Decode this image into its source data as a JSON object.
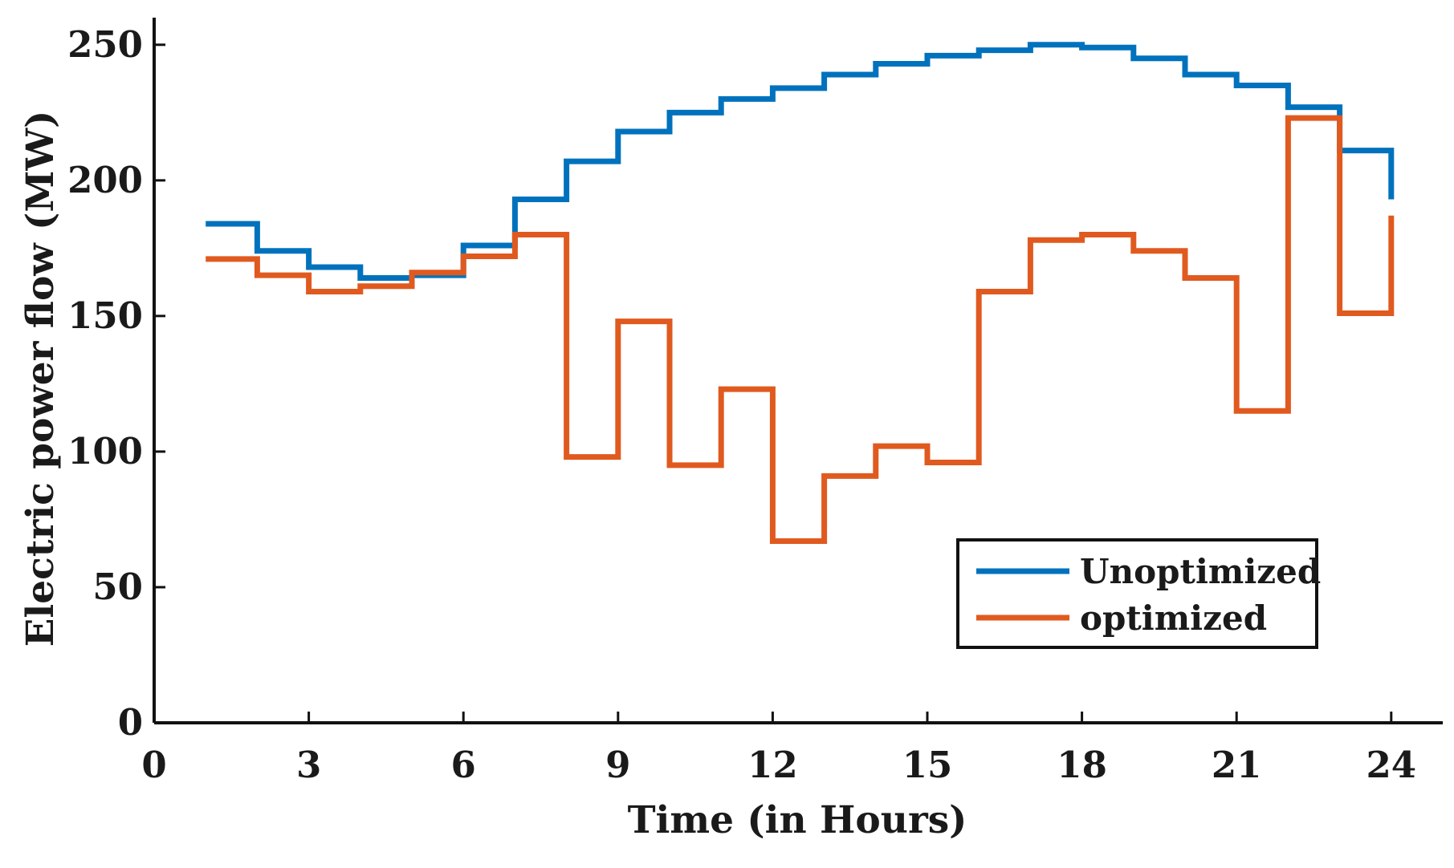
{
  "chart_data": {
    "type": "line",
    "step": true,
    "title": "",
    "xlabel": "Time (in Hours)",
    "ylabel": "Electric power flow (MW)",
    "xlim": [
      0,
      25
    ],
    "ylim": [
      0,
      260
    ],
    "xticks": [
      0,
      3,
      6,
      9,
      12,
      15,
      18,
      21,
      24
    ],
    "yticks": [
      0,
      50,
      100,
      150,
      200,
      250
    ],
    "grid": false,
    "legend_position": "bottom-right",
    "x": [
      1,
      2,
      3,
      4,
      5,
      6,
      7,
      8,
      9,
      10,
      11,
      12,
      13,
      14,
      15,
      16,
      17,
      18,
      19,
      20,
      21,
      22,
      23,
      24
    ],
    "series": [
      {
        "name": "Unoptimized",
        "color": "#0072BD",
        "values": [
          184,
          174,
          168,
          164,
          165,
          176,
          193,
          207,
          218,
          225,
          230,
          234,
          239,
          243,
          246,
          248,
          250,
          249,
          245,
          239,
          235,
          227,
          211,
          193
        ]
      },
      {
        "name": "optimized",
        "color": "#E05A1F",
        "values": [
          171,
          165,
          159,
          161,
          166,
          172,
          180,
          98,
          148,
          95,
          123,
          67,
          91,
          102,
          96,
          159,
          178,
          180,
          174,
          164,
          115,
          223,
          151,
          187
        ]
      }
    ]
  }
}
